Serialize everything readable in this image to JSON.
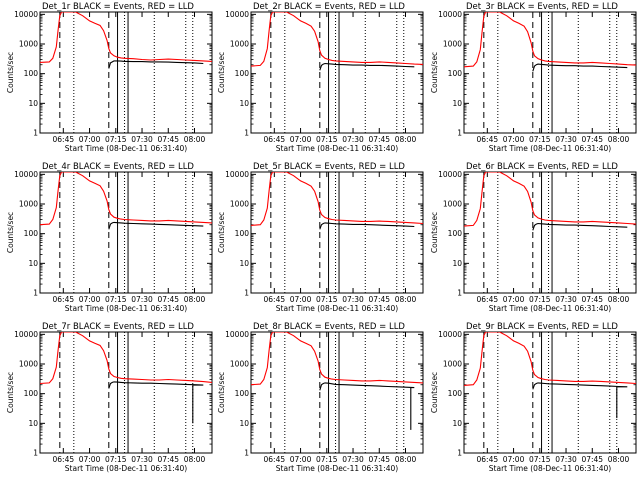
{
  "figure": {
    "panel_titles": [
      "Det_1r BLACK = Events, RED = LLD",
      "Det_2r BLACK = Events, RED = LLD",
      "Det_3r BLACK = Events, RED = LLD",
      "Det_4r BLACK = Events, RED = LLD",
      "Det_5r BLACK = Events, RED = LLD",
      "Det_6r BLACK = Events, RED = LLD",
      "Det_7r BLACK = Events, RED = LLD",
      "Det_8r BLACK = Events, RED = LLD",
      "Det_9r BLACK = Events, RED = LLD"
    ],
    "xlabel": "Start Time (08-Dec-11 06:31:40)",
    "ylabel": "Counts/sec",
    "x_tick_labels": [
      "06:45",
      "07:00",
      "07:15",
      "07:30",
      "07:45",
      "08:00"
    ],
    "y_tick_labels": [
      "1",
      "10",
      "100",
      "1000",
      "10000"
    ]
  },
  "chart_data": {
    "type": "line",
    "grid": "off",
    "y_scale": "log",
    "xlim": [
      "06:31:40",
      "08:10:00"
    ],
    "ylim": [
      1,
      12000
    ],
    "x_ticks": [
      "06:45",
      "07:00",
      "07:15",
      "07:30",
      "07:45",
      "08:00"
    ],
    "y_ticks": [
      1,
      10,
      100,
      1000,
      10000
    ],
    "dashed_vertical_lines": [
      "06:43:00",
      "07:11:00"
    ],
    "dotted_vertical_lines": [
      "06:51:00",
      "07:20:00",
      "07:37:00",
      "07:55:00",
      "07:59:00"
    ],
    "solid_vertical_lines": [
      "07:16:00",
      "07:22:00"
    ],
    "colors": {
      "events": "#000000",
      "lld": "#ff0000"
    },
    "series_names": [
      "Events",
      "LLD"
    ],
    "lld_times": [
      "06:31:40",
      "06:37:00",
      "06:39:00",
      "06:41:00",
      "06:42:00",
      "06:43:00",
      "06:44:00",
      "06:45:00",
      "06:46:00",
      "06:48:00",
      "06:52:00",
      "06:56:00",
      "07:00:00",
      "07:03:00",
      "07:06:00",
      "07:08:00",
      "07:10:00",
      "07:11:00",
      "07:12:00",
      "07:14:00",
      "07:16:00",
      "07:18:00",
      "07:20:00",
      "07:25:00",
      "07:30:00",
      "07:35:00",
      "07:40:00",
      "07:45:00",
      "07:50:00",
      "07:55:00",
      "08:00:00",
      "08:05:00",
      "08:10:00"
    ],
    "event_times": [
      "07:11:00",
      "07:12:00",
      "07:13:00",
      "07:14:00",
      "07:16:00",
      "07:18:00",
      "07:20:00",
      "07:25:00",
      "07:30:00",
      "07:35:00",
      "07:40:00",
      "07:45:00",
      "07:50:00",
      "07:55:00",
      "08:00:00",
      "08:05:00"
    ],
    "panels": [
      {
        "detector": "Det_1r",
        "lld": [
          240,
          250,
          330,
          800,
          3000,
          9000,
          12000,
          12000,
          12000,
          12000,
          12000,
          9000,
          6000,
          5000,
          4200,
          2800,
          1300,
          700,
          500,
          400,
          360,
          340,
          330,
          320,
          300,
          290,
          300,
          310,
          300,
          290,
          280,
          270,
          260
        ],
        "events": [
          150,
          230,
          250,
          270,
          270,
          265,
          260,
          255,
          255,
          250,
          250,
          245,
          240,
          235,
          230,
          220
        ],
        "dip": null
      },
      {
        "detector": "Det_2r",
        "lld": [
          180,
          190,
          260,
          700,
          2800,
          9000,
          12000,
          12000,
          12000,
          12000,
          12000,
          9000,
          6000,
          5000,
          4000,
          2700,
          1200,
          600,
          420,
          330,
          300,
          280,
          270,
          260,
          250,
          240,
          240,
          250,
          240,
          230,
          220,
          210,
          205
        ],
        "events": [
          130,
          190,
          210,
          220,
          215,
          210,
          205,
          200,
          195,
          195,
          190,
          190,
          185,
          180,
          175,
          170
        ],
        "dip": null
      },
      {
        "detector": "Det_3r",
        "lld": [
          170,
          180,
          250,
          650,
          2600,
          8500,
          12000,
          12000,
          12000,
          12000,
          12000,
          9000,
          6000,
          5000,
          4000,
          2600,
          1100,
          580,
          400,
          320,
          290,
          270,
          260,
          250,
          240,
          230,
          230,
          240,
          230,
          220,
          210,
          200,
          195
        ],
        "events": [
          120,
          180,
          200,
          210,
          205,
          200,
          195,
          190,
          185,
          185,
          180,
          180,
          175,
          170,
          165,
          160
        ],
        "dip": null
      },
      {
        "detector": "Det_4r",
        "lld": [
          200,
          210,
          300,
          750,
          2900,
          9000,
          12000,
          12000,
          12000,
          12000,
          12000,
          9000,
          6000,
          5000,
          4100,
          2700,
          1250,
          650,
          460,
          360,
          330,
          310,
          300,
          290,
          280,
          270,
          270,
          280,
          270,
          260,
          250,
          240,
          230
        ],
        "events": [
          140,
          210,
          230,
          240,
          235,
          230,
          225,
          220,
          215,
          210,
          205,
          200,
          195,
          190,
          185,
          180
        ],
        "dip": null
      },
      {
        "detector": "Det_5r",
        "lld": [
          190,
          200,
          290,
          720,
          2800,
          9000,
          12000,
          12000,
          12000,
          12000,
          12000,
          9000,
          6000,
          5000,
          4000,
          2700,
          1200,
          620,
          440,
          350,
          320,
          300,
          290,
          280,
          270,
          260,
          260,
          265,
          260,
          250,
          240,
          230,
          220
        ],
        "events": [
          140,
          200,
          220,
          230,
          225,
          220,
          215,
          210,
          205,
          205,
          200,
          195,
          190,
          185,
          180,
          175
        ],
        "dip": null
      },
      {
        "detector": "Det_6r",
        "lld": [
          180,
          190,
          280,
          700,
          2700,
          8800,
          12000,
          12000,
          12000,
          12000,
          12000,
          9000,
          6000,
          5000,
          4000,
          2650,
          1150,
          600,
          430,
          340,
          310,
          290,
          280,
          270,
          260,
          250,
          250,
          260,
          250,
          240,
          230,
          220,
          210
        ],
        "events": [
          130,
          190,
          210,
          220,
          215,
          210,
          205,
          200,
          195,
          195,
          190,
          185,
          180,
          175,
          170,
          165
        ],
        "dip": null
      },
      {
        "detector": "Det_7r",
        "lld": [
          220,
          230,
          320,
          780,
          3000,
          9000,
          12000,
          12000,
          12000,
          12000,
          12000,
          9000,
          6000,
          5000,
          4200,
          2800,
          1300,
          680,
          480,
          380,
          350,
          330,
          320,
          310,
          300,
          290,
          290,
          300,
          290,
          280,
          270,
          255,
          240
        ],
        "events": [
          150,
          220,
          240,
          250,
          245,
          240,
          235,
          230,
          225,
          225,
          220,
          215,
          210,
          205,
          200,
          195
        ],
        "dip": {
          "time": "07:59:00",
          "value": 10
        }
      },
      {
        "detector": "Det_8r",
        "lld": [
          200,
          210,
          300,
          750,
          2900,
          9000,
          12000,
          12000,
          12000,
          12000,
          12000,
          9000,
          6000,
          5000,
          4100,
          2700,
          1250,
          650,
          460,
          360,
          330,
          310,
          300,
          290,
          280,
          270,
          270,
          280,
          270,
          260,
          250,
          240,
          230
        ],
        "events": [
          130,
          200,
          220,
          230,
          225,
          215,
          205,
          200,
          195,
          190,
          185,
          180,
          175,
          170,
          165,
          160
        ],
        "dip": {
          "time": "08:03:00",
          "value": 6
        }
      },
      {
        "detector": "Det_9r",
        "lld": [
          190,
          200,
          290,
          720,
          2800,
          9000,
          12000,
          12000,
          12000,
          12000,
          12000,
          9000,
          6000,
          5000,
          4000,
          2700,
          1200,
          620,
          440,
          350,
          320,
          300,
          290,
          280,
          270,
          260,
          260,
          265,
          260,
          250,
          240,
          230,
          220
        ],
        "events": [
          140,
          200,
          220,
          230,
          225,
          220,
          215,
          210,
          205,
          200,
          195,
          190,
          185,
          180,
          175,
          170
        ],
        "dip": {
          "time": "07:59:00",
          "value": 15
        }
      }
    ]
  }
}
